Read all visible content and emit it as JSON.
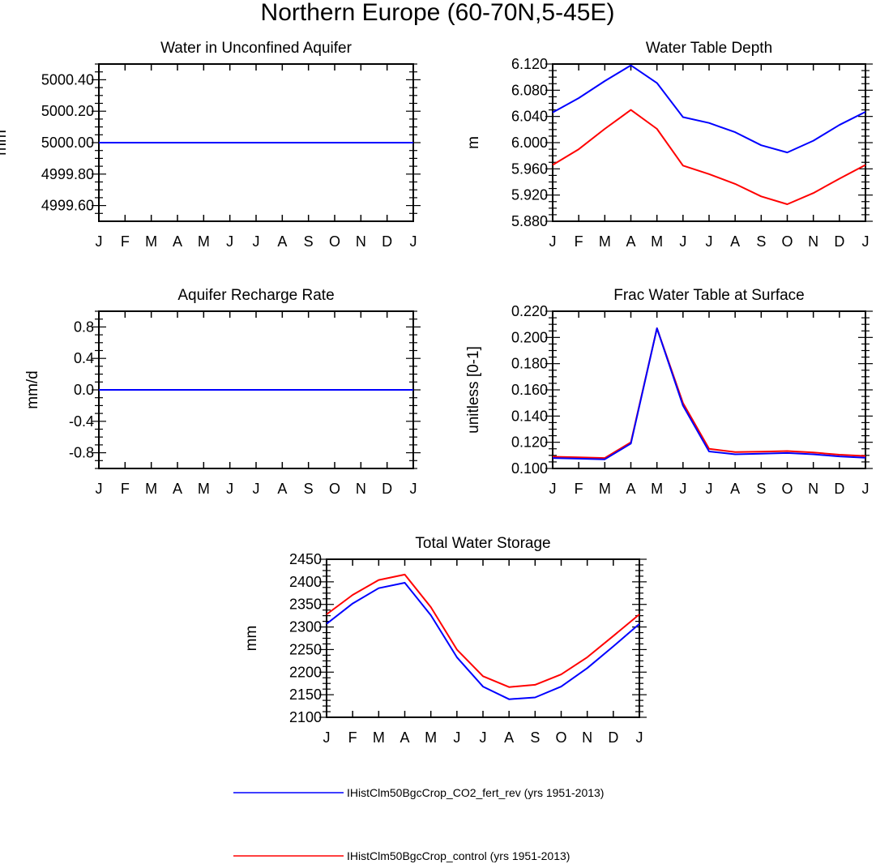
{
  "figure": {
    "title": "Northern Europe (60-70N,5-45E)"
  },
  "colors": {
    "rev": "#0000ff",
    "control": "#ff0000"
  },
  "legend": {
    "placement": "bottom-left",
    "entries": [
      {
        "key": "rev",
        "label": "IHistClm50BgcCrop_CO2_fert_rev (yrs 1951-2013)"
      },
      {
        "key": "control",
        "label": "IHistClm50BgcCrop_control (yrs 1951-2013)"
      }
    ]
  },
  "chart_data": [
    {
      "type": "line",
      "title": "Water in Unconfined Aquifer",
      "ylabel": "mm",
      "xlabel": "",
      "categories": [
        "J",
        "F",
        "M",
        "A",
        "M",
        "J",
        "J",
        "A",
        "S",
        "O",
        "N",
        "D",
        "J"
      ],
      "ylim": [
        4999.5,
        5000.5
      ],
      "yticks": [
        "5000.40",
        "5000.20",
        "5000.00",
        "4999.80",
        "4999.60"
      ],
      "series": [
        {
          "key": "control",
          "values": [
            5000,
            5000,
            5000,
            5000,
            5000,
            5000,
            5000,
            5000,
            5000,
            5000,
            5000,
            5000,
            5000
          ]
        },
        {
          "key": "rev",
          "values": [
            5000,
            5000,
            5000,
            5000,
            5000,
            5000,
            5000,
            5000,
            5000,
            5000,
            5000,
            5000,
            5000
          ]
        }
      ]
    },
    {
      "type": "line",
      "title": "Water Table Depth",
      "ylabel": "m",
      "xlabel": "",
      "categories": [
        "J",
        "F",
        "M",
        "A",
        "M",
        "J",
        "J",
        "A",
        "S",
        "O",
        "N",
        "D",
        "J"
      ],
      "ylim": [
        5.88,
        6.12
      ],
      "yticks": [
        "6.120",
        "6.080",
        "6.040",
        "6.000",
        "5.960",
        "5.920",
        "5.880"
      ],
      "series": [
        {
          "key": "rev",
          "values": [
            6.046,
            6.068,
            6.094,
            6.118,
            6.091,
            6.039,
            6.03,
            6.016,
            5.996,
            5.985,
            6.003,
            6.027,
            6.047
          ]
        },
        {
          "key": "control",
          "values": [
            5.966,
            5.99,
            6.021,
            6.05,
            6.021,
            5.965,
            5.952,
            5.937,
            5.918,
            5.906,
            5.923,
            5.945,
            5.966
          ]
        }
      ]
    },
    {
      "type": "line",
      "title": "Aquifer Recharge Rate",
      "ylabel": "mm/d",
      "xlabel": "",
      "categories": [
        "J",
        "F",
        "M",
        "A",
        "M",
        "J",
        "J",
        "A",
        "S",
        "O",
        "N",
        "D",
        "J"
      ],
      "ylim": [
        -1.0,
        1.0
      ],
      "yticks": [
        "0.8",
        "0.4",
        "0.0",
        "-0.4",
        "-0.8"
      ],
      "series": [
        {
          "key": "control",
          "values": [
            0,
            0,
            0,
            0,
            0,
            0,
            0,
            0,
            0,
            0,
            0,
            0,
            0
          ]
        },
        {
          "key": "rev",
          "values": [
            0,
            0,
            0,
            0,
            0,
            0,
            0,
            0,
            0,
            0,
            0,
            0,
            0
          ]
        }
      ]
    },
    {
      "type": "line",
      "title": "Frac Water Table at Surface",
      "ylabel": "unitless [0-1]",
      "xlabel": "",
      "categories": [
        "J",
        "F",
        "M",
        "A",
        "M",
        "J",
        "J",
        "A",
        "S",
        "O",
        "N",
        "D",
        "J"
      ],
      "ylim": [
        0.1,
        0.22
      ],
      "yticks": [
        "0.220",
        "0.200",
        "0.180",
        "0.160",
        "0.140",
        "0.120",
        "0.100"
      ],
      "series": [
        {
          "key": "control",
          "values": [
            0.109,
            0.1085,
            0.108,
            0.12,
            0.207,
            0.15,
            0.115,
            0.1125,
            0.1128,
            0.1133,
            0.1122,
            0.1105,
            0.1095
          ]
        },
        {
          "key": "rev",
          "values": [
            0.108,
            0.1075,
            0.107,
            0.119,
            0.207,
            0.148,
            0.113,
            0.1108,
            0.1113,
            0.1118,
            0.1108,
            0.1092,
            0.1082
          ]
        }
      ]
    },
    {
      "type": "line",
      "title": "Total Water Storage",
      "ylabel": "mm",
      "xlabel": "",
      "categories": [
        "J",
        "F",
        "M",
        "A",
        "M",
        "J",
        "J",
        "A",
        "S",
        "O",
        "N",
        "D",
        "J"
      ],
      "ylim": [
        2100,
        2450
      ],
      "yticks": [
        "2450",
        "2400",
        "2350",
        "2300",
        "2250",
        "2200",
        "2150",
        "2100"
      ],
      "series": [
        {
          "key": "rev",
          "values": [
            2307,
            2352,
            2386,
            2398,
            2326,
            2233,
            2168,
            2140,
            2144,
            2168,
            2209,
            2257,
            2307
          ]
        },
        {
          "key": "control",
          "values": [
            2328,
            2371,
            2404,
            2416,
            2344,
            2250,
            2191,
            2167,
            2172,
            2195,
            2233,
            2280,
            2328
          ]
        }
      ]
    }
  ]
}
